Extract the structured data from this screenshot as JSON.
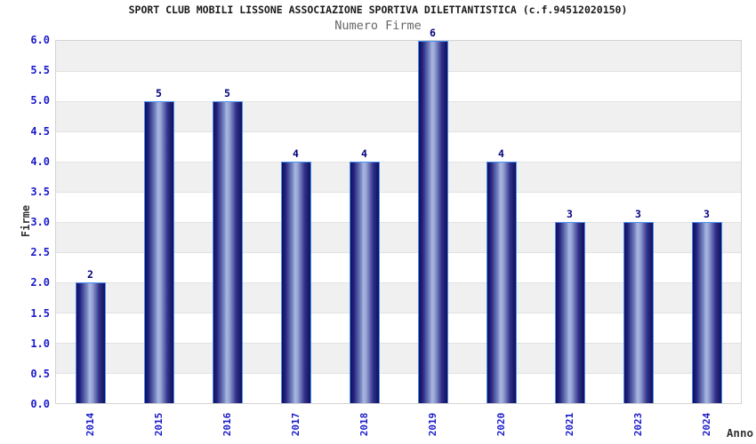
{
  "chart_data": {
    "type": "bar",
    "title": "SPORT CLUB MOBILI LISSONE ASSOCIAZIONE SPORTIVA DILETTANTISTICA (c.f.94512020150)",
    "subtitle": "Numero Firme",
    "xlabel": "Anno",
    "ylabel": "Firme",
    "categories": [
      "2014",
      "2015",
      "2016",
      "2017",
      "2018",
      "2019",
      "2020",
      "2021",
      "2023",
      "2024"
    ],
    "values": [
      2,
      5,
      5,
      4,
      4,
      6,
      4,
      3,
      3,
      3
    ],
    "value_labels": [
      "2",
      "5",
      "5",
      "4",
      "4",
      "6",
      "4",
      "3",
      "3",
      "3"
    ],
    "ylim": [
      0,
      6
    ],
    "ytick_step": 0.5,
    "yticks": [
      "6.0",
      "5.5",
      "5.0",
      "4.5",
      "4.0",
      "3.5",
      "3.0",
      "2.5",
      "2.0",
      "1.5",
      "1.0",
      "0.5",
      "0.0"
    ],
    "grid": "horizontal-alternating-bands",
    "legend": "none"
  },
  "colors": {
    "title_text": "#1a1a1a",
    "subtitle_text": "#666666",
    "axis_title_text": "#333333",
    "tick_text_blue": "#1a1acc",
    "value_label_navy": "#00007e",
    "bar_border_lightblue": "#4a90f2",
    "bar_dark_navy": "#10105c",
    "bar_highlight": "#a9b6e2",
    "band_gray": "#f0f0f0",
    "band_white": "#ffffff",
    "gridline": "#e2e2e2",
    "plot_border": "#d3d3d3",
    "background": "#ffffff"
  }
}
